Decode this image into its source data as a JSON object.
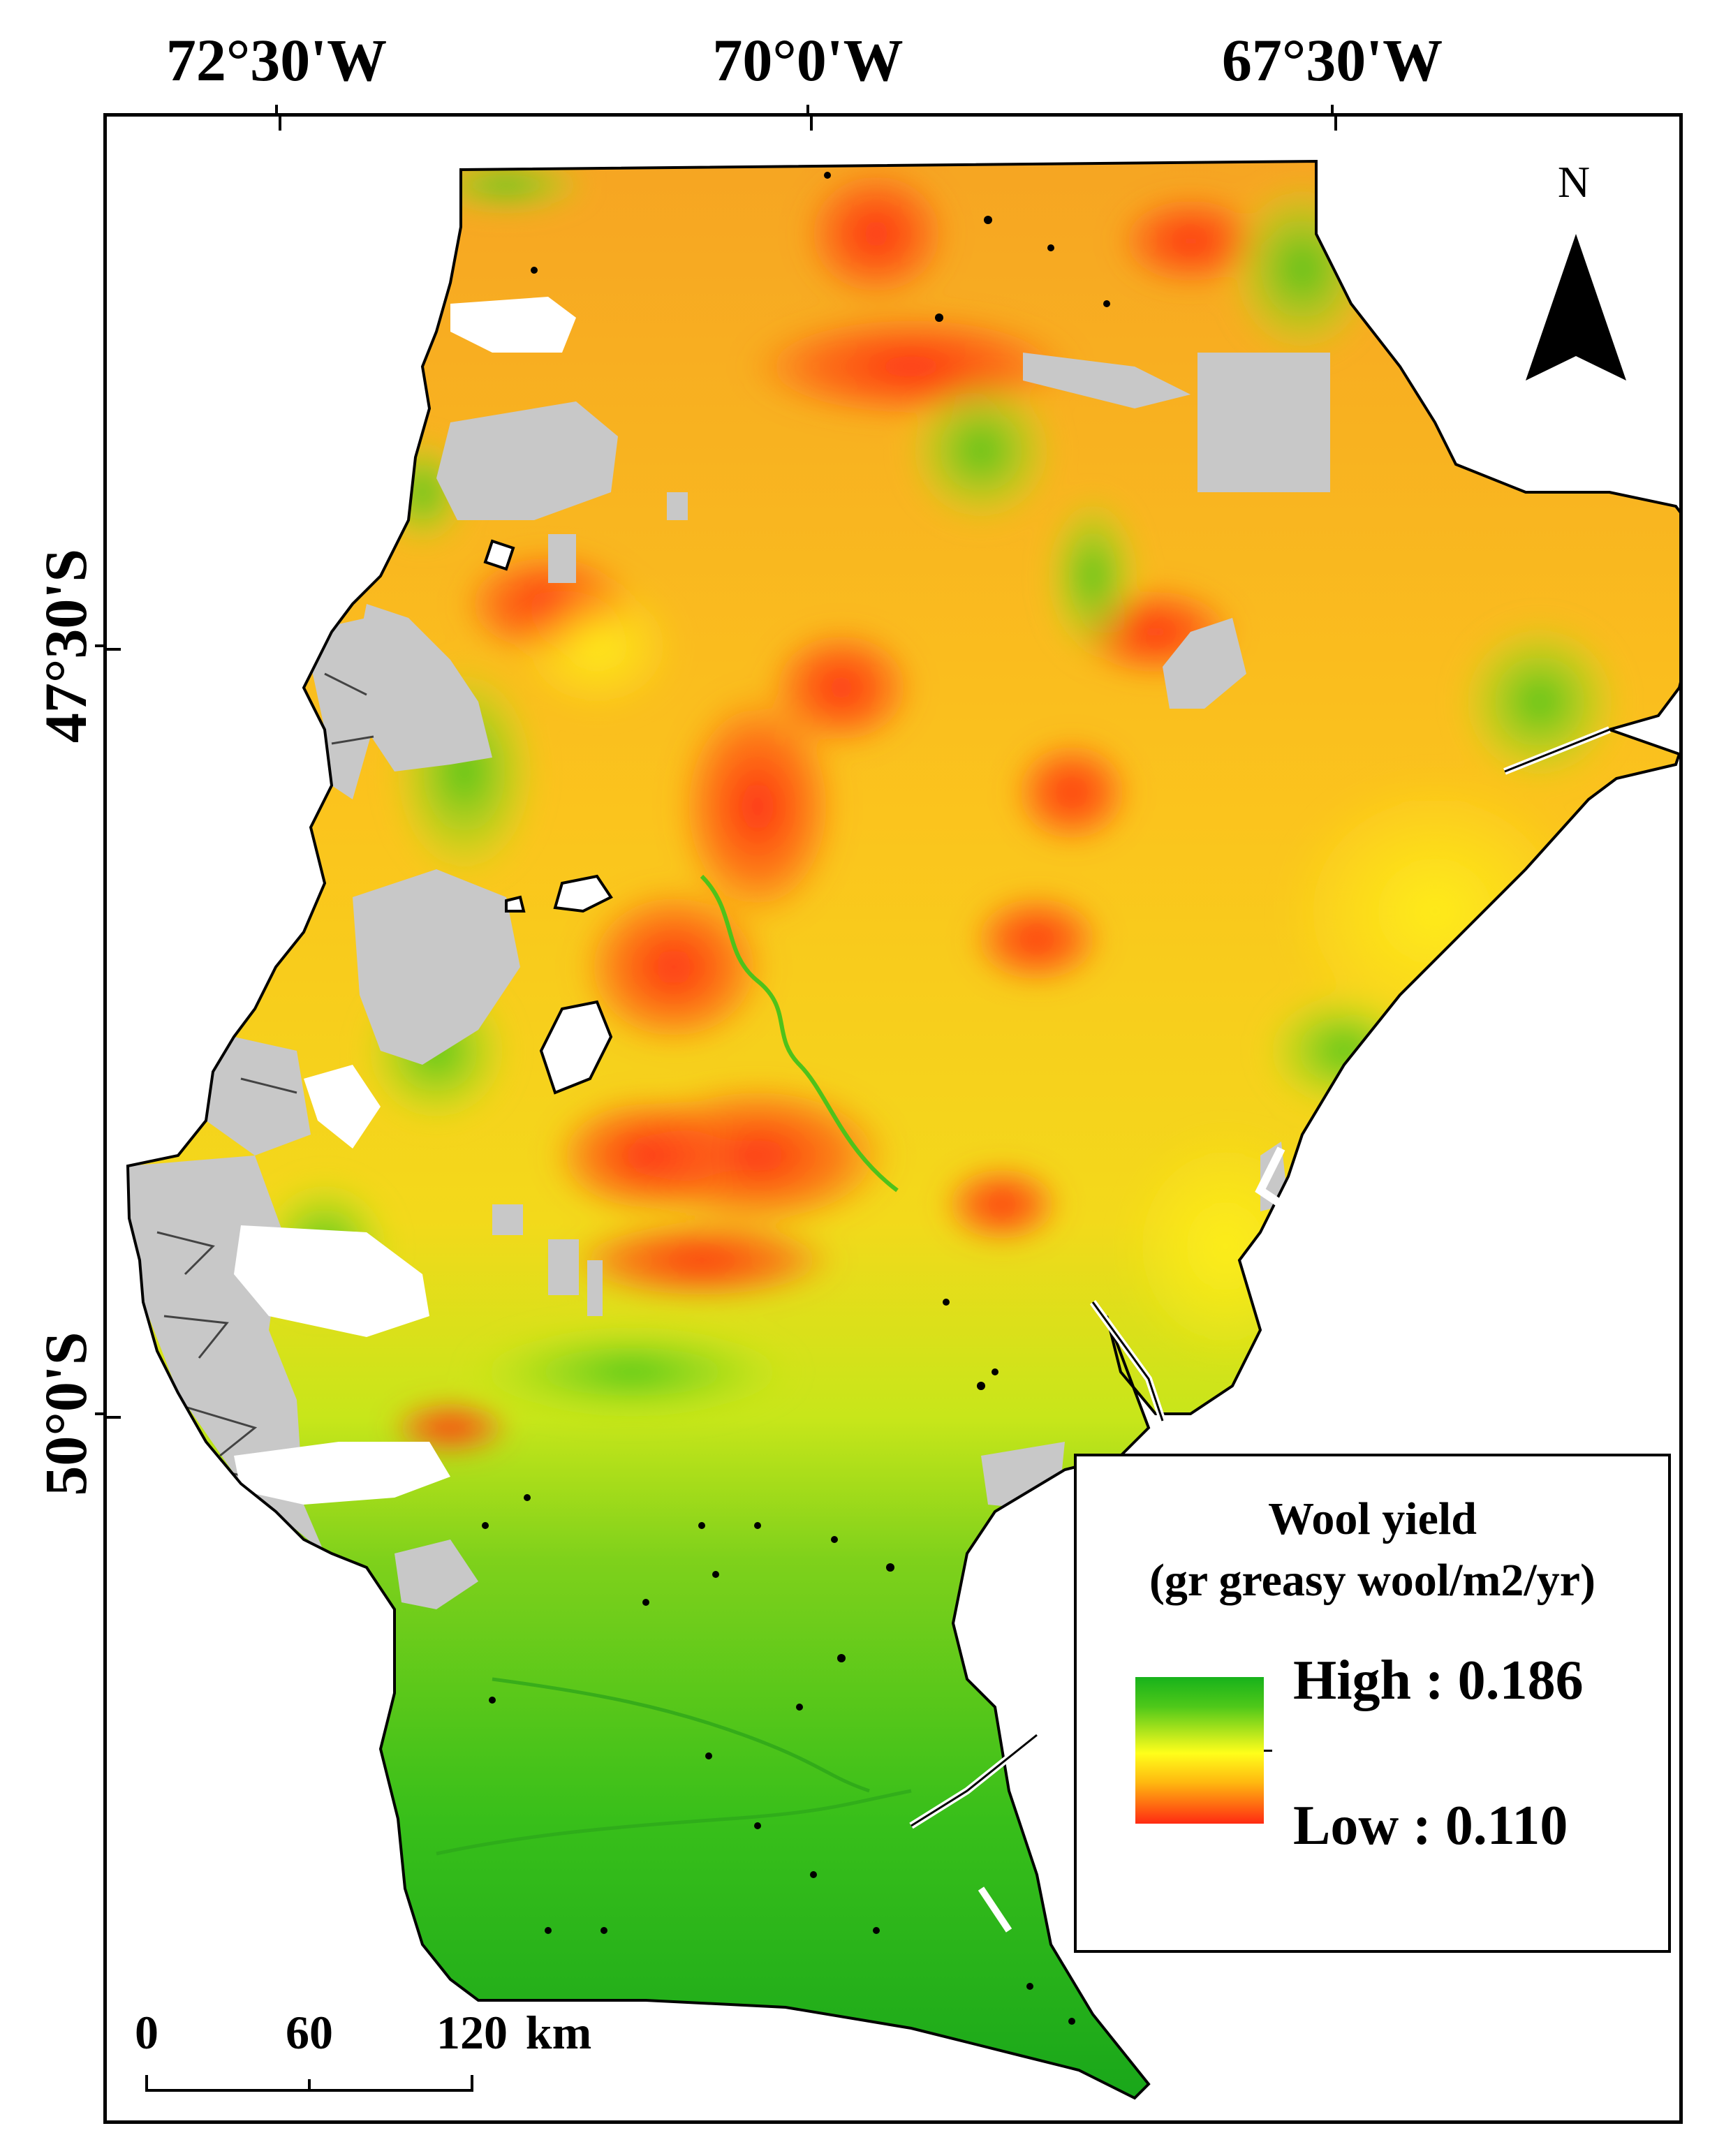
{
  "axes": {
    "longitude_labels": [
      "72°30'W",
      "70°0'W",
      "67°30'W"
    ],
    "latitude_labels": [
      "47°30'S",
      "50°0'S"
    ]
  },
  "north_arrow": {
    "label": "N",
    "icon": "north-arrow-icon"
  },
  "legend": {
    "title_line1": "Wool yield",
    "title_line2": "(gr greasy wool/m2/yr)",
    "high_label": "High : 0.186",
    "low_label": "Low : 0.110",
    "high_value": 0.186,
    "low_value": 0.11,
    "colors": {
      "high": "#17b21b",
      "mid": "#ffff1a",
      "low": "#ff2a12"
    }
  },
  "scale_bar": {
    "ticks": [
      "0",
      "60",
      "120"
    ],
    "unit": "km"
  },
  "map_colors": {
    "no_data": "#c8c8c8",
    "water": "#ffffff",
    "outline": "#000000"
  }
}
